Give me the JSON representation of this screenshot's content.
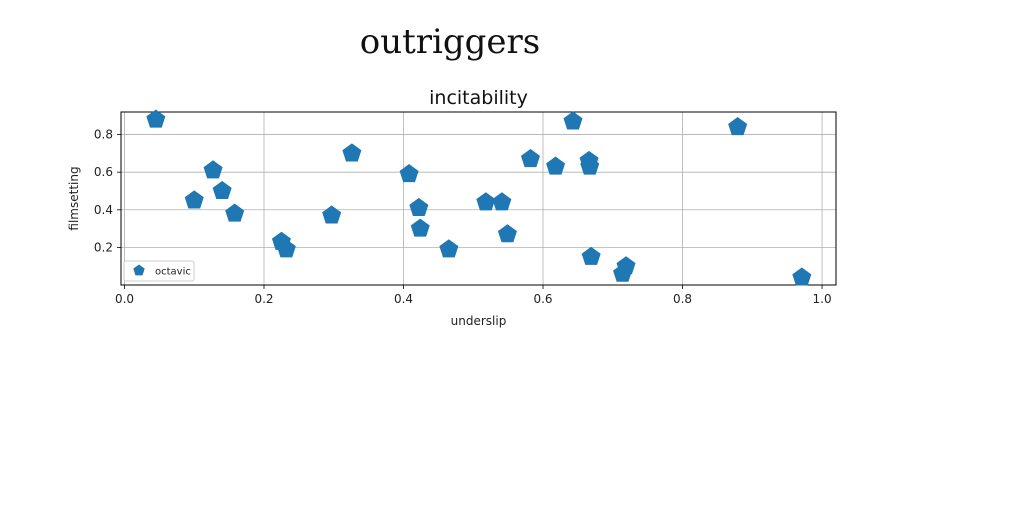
{
  "figure": {
    "suptitle": "outriggers"
  },
  "chart_data": {
    "type": "scatter",
    "title": "incitability",
    "xlabel": "underslip",
    "ylabel": "filmsetting",
    "xlim": [
      -0.005,
      1.02
    ],
    "ylim": [
      0.0,
      0.92
    ],
    "xticks": [
      0.0,
      0.2,
      0.4,
      0.6,
      0.8,
      1.0
    ],
    "xtick_labels": [
      "0.0",
      "0.2",
      "0.4",
      "0.6",
      "0.8",
      "1.0"
    ],
    "yticks": [
      0.2,
      0.4,
      0.6,
      0.8
    ],
    "ytick_labels": [
      "0.2",
      "0.4",
      "0.6",
      "0.8"
    ],
    "grid": true,
    "legend_position": "lower-left",
    "marker": "pentagon",
    "series": [
      {
        "name": "octavic",
        "color": "#1f77b4",
        "x": [
          0.045,
          0.1,
          0.127,
          0.14,
          0.158,
          0.225,
          0.232,
          0.297,
          0.326,
          0.408,
          0.422,
          0.424,
          0.465,
          0.518,
          0.541,
          0.549,
          0.582,
          0.618,
          0.643,
          0.666,
          0.667,
          0.669,
          0.714,
          0.719,
          0.879,
          0.971
        ],
        "y": [
          0.88,
          0.45,
          0.61,
          0.5,
          0.38,
          0.23,
          0.19,
          0.37,
          0.7,
          0.59,
          0.41,
          0.3,
          0.19,
          0.44,
          0.44,
          0.27,
          0.67,
          0.63,
          0.87,
          0.66,
          0.63,
          0.15,
          0.06,
          0.1,
          0.84,
          0.04
        ]
      }
    ]
  }
}
